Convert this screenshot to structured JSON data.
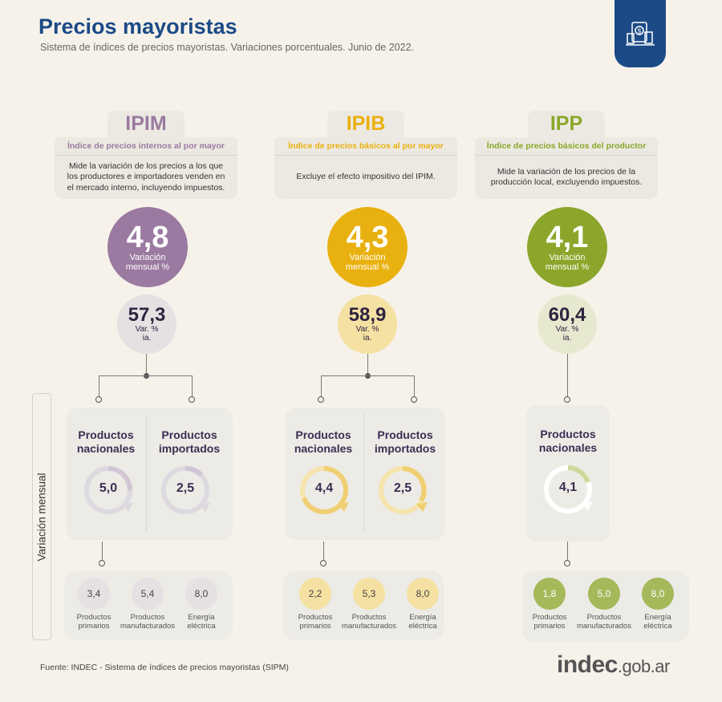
{
  "header": {
    "title": "Precios mayoristas",
    "subtitle": "Sistema de índices de precios mayoristas. Variaciones porcentuales. Junio de 2022."
  },
  "colors": {
    "ipim": "#9a7aa0",
    "ipib": "#e9b10f",
    "ipp": "#8ba62a",
    "ipim_light": "#e5e1e3",
    "ipib_light": "#f5e1a2",
    "ipp_light": "#e6e8cf",
    "brand_blue": "#1b4a86"
  },
  "side_label": "Variación mensual",
  "indices": [
    {
      "name": "IPIM",
      "definition": "Índice de precios internos al por mayor",
      "description": "Mide la variación de los precios a los que los productores e importadores venden en el mercado interno, incluyendo impuestos.",
      "monthly": "4,8",
      "monthly_label": "Variación mensual %",
      "yoy": "57,3",
      "yoy_label_1": "Var. %",
      "yoy_label_2": "ia.",
      "products": [
        {
          "title_1": "Productos",
          "title_2": "nacionales",
          "value": "5,0"
        },
        {
          "title_1": "Productos",
          "title_2": "importados",
          "value": "2,5"
        }
      ],
      "subproducts": [
        {
          "value": "3,4",
          "label_1": "Productos",
          "label_2": "primarios"
        },
        {
          "value": "5,4",
          "label_1": "Productos",
          "label_2": "manufacturados"
        },
        {
          "value": "8,0",
          "label_1": "Energía",
          "label_2": "eléctrica"
        }
      ]
    },
    {
      "name": "IPIB",
      "definition": "Índice de precios básicos al por mayor",
      "description": "Excluye el efecto impositivo del IPIM.",
      "monthly": "4,3",
      "monthly_label": "Variación mensual %",
      "yoy": "58,9",
      "yoy_label_1": "Var. %",
      "yoy_label_2": "ia.",
      "products": [
        {
          "title_1": "Productos",
          "title_2": "nacionales",
          "value": "4,4"
        },
        {
          "title_1": "Productos",
          "title_2": "importados",
          "value": "2,5"
        }
      ],
      "subproducts": [
        {
          "value": "2,2",
          "label_1": "Productos",
          "label_2": "primarios"
        },
        {
          "value": "5,3",
          "label_1": "Productos",
          "label_2": "manufacturados"
        },
        {
          "value": "8,0",
          "label_1": "Energía",
          "label_2": "eléctrica"
        }
      ]
    },
    {
      "name": "IPP",
      "definition": "Índice de precios básicos del productor",
      "description": "Mide la variación de los precios de la producción local, excluyendo impuestos.",
      "monthly": "4,1",
      "monthly_label": "Variación mensual %",
      "yoy": "60,4",
      "yoy_label_1": "Var. %",
      "yoy_label_2": "ia.",
      "products": [
        {
          "title_1": "Productos",
          "title_2": "nacionales",
          "value": "4,1"
        }
      ],
      "subproducts": [
        {
          "value": "1,8",
          "label_1": "Productos",
          "label_2": "primarios"
        },
        {
          "value": "5,0",
          "label_1": "Productos",
          "label_2": "manufacturados"
        },
        {
          "value": "8,0",
          "label_1": "Energía",
          "label_2": "eléctrica"
        }
      ]
    }
  ],
  "footer": {
    "source": "Fuente: INDEC - Sistema de índices de precios mayoristas (SIPM)",
    "brand_bold": "indec",
    "brand_suffix": ".gob.ar"
  }
}
